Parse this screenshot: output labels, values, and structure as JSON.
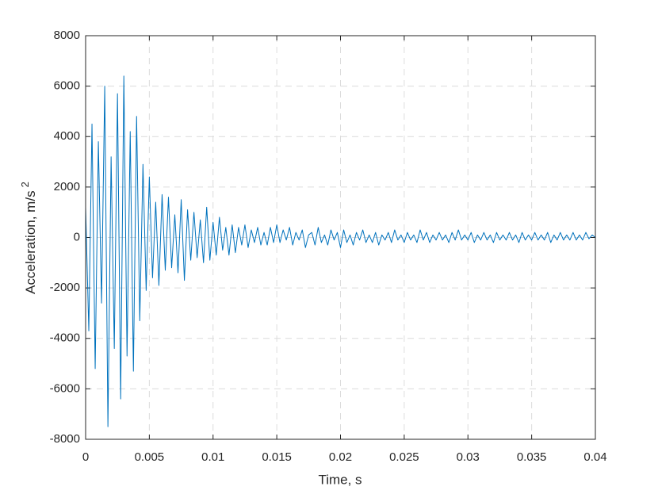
{
  "chart_data": {
    "type": "line",
    "xlabel": "Time, s",
    "ylabel": "Acceleration, m/s",
    "ylabel_sup": "2",
    "xlim": [
      0,
      0.04
    ],
    "ylim": [
      -8000,
      8000
    ],
    "xticks": [
      0,
      0.005,
      0.01,
      0.015,
      0.02,
      0.025,
      0.03,
      0.035,
      0.04
    ],
    "yticks": [
      -8000,
      -6000,
      -4000,
      -2000,
      0,
      2000,
      4000,
      6000,
      8000
    ],
    "grid": true,
    "x": [
      0,
      0.00025,
      0.0005,
      0.00075,
      0.001,
      0.00125,
      0.0015,
      0.00175,
      0.002,
      0.00225,
      0.0025,
      0.00275,
      0.003,
      0.00325,
      0.0035,
      0.00375,
      0.004,
      0.00425,
      0.0045,
      0.00475,
      0.005,
      0.00525,
      0.0055,
      0.00575,
      0.006,
      0.00625,
      0.0065,
      0.00675,
      0.007,
      0.00725,
      0.0075,
      0.00775,
      0.008,
      0.00825,
      0.0085,
      0.00875,
      0.009,
      0.00925,
      0.0095,
      0.00975,
      0.01,
      0.01025,
      0.0105,
      0.01075,
      0.011,
      0.01125,
      0.0115,
      0.01175,
      0.012,
      0.01225,
      0.0125,
      0.01275,
      0.013,
      0.01325,
      0.0135,
      0.01375,
      0.014,
      0.01425,
      0.0145,
      0.01475,
      0.015,
      0.01525,
      0.0155,
      0.01575,
      0.016,
      0.01625,
      0.0165,
      0.01675,
      0.017,
      0.01725,
      0.0175,
      0.01775,
      0.018,
      0.01825,
      0.0185,
      0.01875,
      0.019,
      0.01925,
      0.0195,
      0.01975,
      0.02,
      0.02025,
      0.0205,
      0.02075,
      0.021,
      0.02125,
      0.0215,
      0.02175,
      0.022,
      0.02225,
      0.0225,
      0.02275,
      0.023,
      0.02325,
      0.0235,
      0.02375,
      0.024,
      0.02425,
      0.0245,
      0.02475,
      0.025,
      0.02525,
      0.0255,
      0.02575,
      0.026,
      0.02625,
      0.0265,
      0.02675,
      0.027,
      0.02725,
      0.0275,
      0.02775,
      0.028,
      0.02825,
      0.0285,
      0.02875,
      0.029,
      0.02925,
      0.0295,
      0.02975,
      0.03,
      0.03025,
      0.0305,
      0.03075,
      0.031,
      0.03125,
      0.0315,
      0.03175,
      0.032,
      0.03225,
      0.0325,
      0.03275,
      0.033,
      0.03325,
      0.0335,
      0.03375,
      0.034,
      0.03425,
      0.0345,
      0.03475,
      0.035,
      0.03525,
      0.0355,
      0.03575,
      0.036,
      0.03625,
      0.0365,
      0.03675,
      0.037,
      0.03725,
      0.0375,
      0.03775,
      0.038,
      0.03825,
      0.0385,
      0.03875,
      0.039,
      0.03925,
      0.0395,
      0.03975,
      0.04
    ],
    "series": [
      {
        "color": "#0072bd",
        "values": [
          1200,
          -3700,
          4500,
          -5200,
          3800,
          -2600,
          6000,
          -7500,
          3200,
          -4400,
          5700,
          -6400,
          6400,
          -4700,
          4200,
          -5300,
          4800,
          -3300,
          2900,
          -2100,
          2400,
          -1600,
          1400,
          -1900,
          1700,
          -1300,
          1600,
          -1200,
          900,
          -1400,
          1500,
          -1700,
          1100,
          -900,
          1000,
          -800,
          700,
          -1000,
          1200,
          -900,
          600,
          -700,
          800,
          -500,
          400,
          -700,
          500,
          -600,
          400,
          -300,
          500,
          -400,
          300,
          -200,
          400,
          -300,
          200,
          -300,
          400,
          -200,
          500,
          -200,
          300,
          -100,
          400,
          -300,
          200,
          -100,
          300,
          -400,
          100,
          200,
          -300,
          400,
          -200,
          100,
          -300,
          300,
          -100,
          200,
          -400,
          300,
          -200,
          100,
          -300,
          200,
          -100,
          300,
          -200,
          100,
          -200,
          200,
          -300,
          100,
          -100,
          200,
          -200,
          300,
          -100,
          100,
          -200,
          200,
          -100,
          100,
          -200,
          300,
          -100,
          200,
          -200,
          100,
          -100,
          200,
          -100,
          100,
          -200,
          200,
          -100,
          300,
          -100,
          100,
          -100,
          200,
          -200,
          100,
          -100,
          200,
          -100,
          100,
          -200,
          200,
          -100,
          100,
          -100,
          200,
          -100,
          100,
          -200,
          200,
          -100,
          100,
          -100,
          200,
          -100,
          100,
          -100,
          200,
          -200,
          100,
          -100,
          200,
          -100,
          100,
          -100,
          200,
          -100,
          100,
          -100,
          200,
          -50,
          100,
          0
        ]
      }
    ]
  }
}
